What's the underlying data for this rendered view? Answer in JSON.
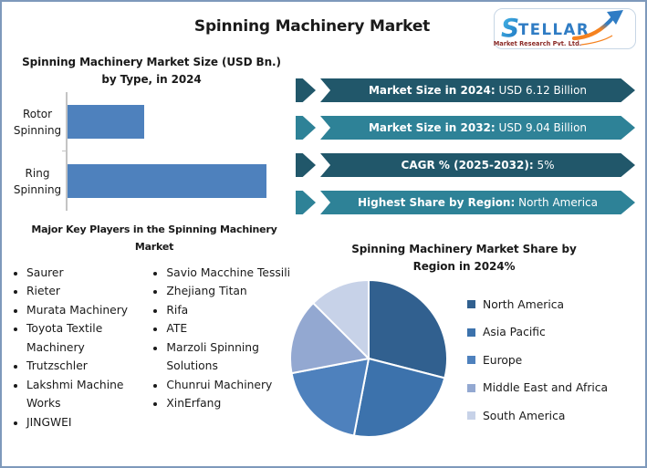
{
  "page": {
    "title": "Spinning Machinery Market"
  },
  "logo": {
    "brand_s": "S",
    "brand_rest": "TELLAR",
    "subtitle": "Market Research Pvt. Ltd.",
    "brand_color": "#2F7CC4",
    "arrow_orange": "#F5821F",
    "subtitle_color": "#8B2A26"
  },
  "stats": [
    {
      "label": "Market Size in 2024:",
      "value": "USD 6.12 Billion",
      "color": "#21576A"
    },
    {
      "label": "Market Size in 2032:",
      "value": "USD 9.04 Billion",
      "color": "#2E8297"
    },
    {
      "label": "CAGR % (2025-2032):",
      "value": "5%",
      "color": "#21576A"
    },
    {
      "label": "Highest Share by Region:",
      "value": "North America",
      "color": "#2E8297"
    }
  ],
  "key_players": {
    "title": "Major Key Players in the Spinning Machinery Market",
    "column_1": [
      "Saurer",
      "Rieter",
      "Murata Machinery",
      "Toyota Textile Machinery",
      "Trutzschler",
      "Lakshmi Machine Works",
      "JINGWEI"
    ],
    "column_2": [
      "Savio Macchine Tessili",
      "Zhejiang Titan",
      "Rifa",
      "ATE",
      "Marzoli Spinning Solutions",
      "Chunrui Machinery",
      "XinErfang"
    ]
  },
  "chart_data": [
    {
      "type": "bar",
      "orientation": "horizontal",
      "title": "Spinning Machinery Market Size (USD Bn.) by Type, in 2024",
      "categories": [
        "Rotor Spinning",
        "Ring Spinning"
      ],
      "values": [
        1.7,
        4.4
      ],
      "values_estimated": true,
      "unit": "USD Bn.",
      "xlim": [
        0,
        5
      ],
      "bar_color": "#4E81BD",
      "axis_color": "#C4C4C4",
      "grid": false
    },
    {
      "type": "pie",
      "title": "Spinning Machinery Market Share by Region in 2024%",
      "labels": [
        "North America",
        "Asia Pacific",
        "Europe",
        "Middle East and Africa",
        "South America"
      ],
      "values": [
        29,
        24,
        19,
        15.5,
        12.5
      ],
      "values_estimated": true,
      "colors": [
        "#31608F",
        "#3C72AC",
        "#4E81BD",
        "#93A8D1",
        "#C7D2E8"
      ],
      "start_angle_deg": 0,
      "direction": "clockwise",
      "legend_position": "right"
    }
  ]
}
